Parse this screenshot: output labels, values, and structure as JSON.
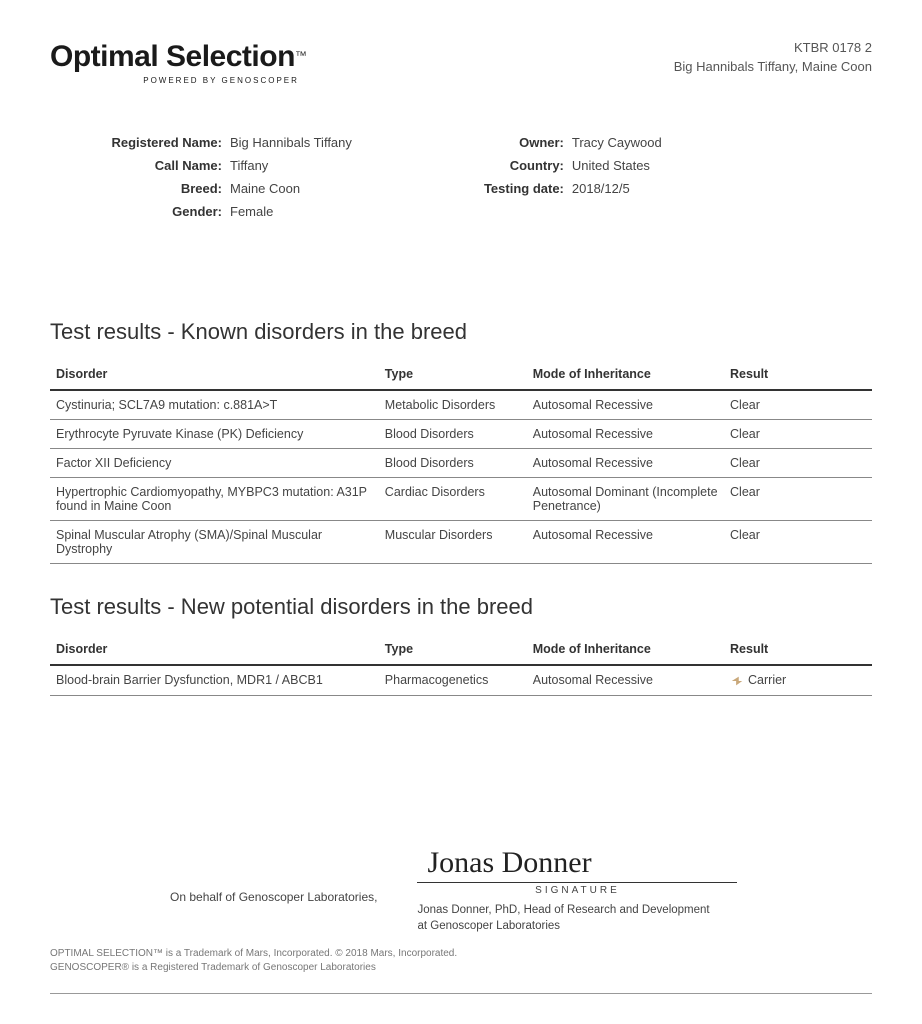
{
  "header": {
    "logo_main": "Optimal Selection",
    "logo_tm": "™",
    "powered_by": "POWERED BY GENOSCOPER",
    "ref_code": "KTBR 0178 2",
    "subject_line": "Big Hannibals Tiffany, Maine Coon"
  },
  "info_left": [
    {
      "label": "Registered Name:",
      "value": "Big Hannibals Tiffany"
    },
    {
      "label": "Call Name:",
      "value": "Tiffany"
    },
    {
      "label": "Breed:",
      "value": "Maine Coon"
    },
    {
      "label": "Gender:",
      "value": "Female"
    }
  ],
  "info_right": [
    {
      "label": "Owner:",
      "value": "Tracy Caywood"
    },
    {
      "label": "Country:",
      "value": "United States"
    },
    {
      "label": "Testing date:",
      "value": "2018/12/5"
    }
  ],
  "section1": {
    "title": "Test results - Known disorders in the breed",
    "columns": [
      "Disorder",
      "Type",
      "Mode of Inheritance",
      "Result"
    ],
    "rows": [
      [
        "Cystinuria; SCL7A9 mutation: c.881A>T",
        "Metabolic Disorders",
        "Autosomal Recessive",
        "Clear"
      ],
      [
        "Erythrocyte Pyruvate Kinase (PK) Deficiency",
        "Blood Disorders",
        "Autosomal Recessive",
        "Clear"
      ],
      [
        "Factor XII Deficiency",
        "Blood Disorders",
        "Autosomal Recessive",
        "Clear"
      ],
      [
        "Hypertrophic Cardiomyopathy, MYBPC3 mutation: A31P found in Maine Coon",
        "Cardiac Disorders",
        "Autosomal Dominant (Incomplete Penetrance)",
        "Clear"
      ],
      [
        "Spinal Muscular Atrophy (SMA)/Spinal Muscular Dystrophy",
        "Muscular Disorders",
        "Autosomal Recessive",
        "Clear"
      ]
    ]
  },
  "section2": {
    "title": "Test results - New potential disorders in the breed",
    "columns": [
      "Disorder",
      "Type",
      "Mode of Inheritance",
      "Result"
    ],
    "rows": [
      [
        "Blood-brain Barrier Dysfunction, MDR1 / ABCB1",
        "Pharmacogenetics",
        "Autosomal Recessive",
        "Carrier"
      ]
    ],
    "carrier_flag": [
      true
    ]
  },
  "signature": {
    "on_behalf": "On behalf of Genoscoper Laboratories,",
    "script": "Jonas Donner",
    "label": "SIGNATURE",
    "name_line1": "Jonas Donner, PhD, Head of Research and Development",
    "name_line2": "at Genoscoper Laboratories"
  },
  "footer": {
    "line1": "OPTIMAL SELECTION™ is a Trademark of Mars, Incorporated. © 2018 Mars, Incorporated.",
    "line2": "GENOSCOPER® is a Registered Trademark of Genoscoper Laboratories"
  },
  "colors": {
    "text": "#333333",
    "border_heavy": "#333333",
    "border_light": "#888888",
    "background": "#ffffff",
    "carrier_icon": "#c9a87a"
  }
}
